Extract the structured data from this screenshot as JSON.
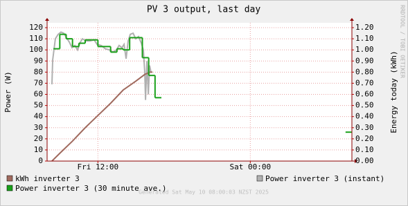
{
  "chart_data": {
    "type": "line",
    "title": "PV 3 output, last day",
    "ylabel": "Power (W)",
    "y2label": "Energy today (kWh)",
    "side_text": "RRDTOOL / TOBI OETIKER",
    "footer": "Generated Sat May 10 08:00:03 NZST 2025",
    "xlim": [
      8,
      32
    ],
    "xticks": [
      {
        "value": 12,
        "label": "Fri 12:00"
      },
      {
        "value": 24,
        "label": "Sat 00:00"
      }
    ],
    "ylim": [
      0,
      120
    ],
    "yticks": [
      0,
      10,
      20,
      30,
      40,
      50,
      60,
      70,
      80,
      90,
      100,
      110,
      120
    ],
    "y2lim": [
      0,
      1.2
    ],
    "y2ticks": [
      {
        "value": 0,
        "label": "0.00"
      },
      {
        "value": 0.1,
        "label": "0.10"
      },
      {
        "value": 0.2,
        "label": "0.20"
      },
      {
        "value": 0.3,
        "label": "0.30"
      },
      {
        "value": 0.4,
        "label": "0.40"
      },
      {
        "value": 0.5,
        "label": "0.50"
      },
      {
        "value": 0.6,
        "label": "0.60"
      },
      {
        "value": 0.7,
        "label": "0.70"
      },
      {
        "value": 0.8,
        "label": "0.80"
      },
      {
        "value": 0.9,
        "label": "0.90"
      },
      {
        "value": 1.0,
        "label": "1.00"
      },
      {
        "value": 1.1,
        "label": "1.10"
      },
      {
        "value": 1.2,
        "label": "1.20"
      }
    ],
    "grid": true,
    "series": [
      {
        "name": "kWh inverter 3",
        "color": "#a06a5e",
        "axis": "y2",
        "x": [
          8.38,
          9,
          10,
          11,
          12,
          13,
          14,
          15,
          15.7,
          16.1,
          16.3
        ],
        "values": [
          0,
          0.07,
          0.18,
          0.3,
          0.41,
          0.52,
          0.64,
          0.72,
          0.78,
          0.8,
          0.8
        ]
      },
      {
        "name": "Power inverter 3 (instant)",
        "color": "#b0b0b0",
        "x": [
          8.38,
          8.44,
          8.65,
          8.87,
          9.09,
          9.31,
          9.47,
          9.75,
          9.96,
          10.18,
          10.4,
          10.62,
          10.78,
          11.06,
          11.38,
          11.71,
          11.93,
          12.26,
          12.58,
          12.91,
          13.18,
          13.46,
          13.67,
          13.89,
          14.06,
          14.22,
          14.38,
          14.55,
          14.77,
          14.98,
          15.2,
          15.42,
          15.58,
          15.69,
          15.75,
          15.86,
          15.97,
          16.07,
          16.18
        ],
        "values": [
          69,
          91,
          110,
          114,
          116,
          115,
          112,
          107,
          102,
          104,
          100,
          107,
          110,
          108,
          108,
          109,
          105,
          104,
          101,
          100,
          98,
          100,
          104,
          102,
          105,
          92,
          108,
          114,
          115,
          110,
          112,
          106,
          100,
          80,
          55,
          90,
          60,
          86,
          80
        ]
      },
      {
        "name": "Power inverter 3 (30 minute ave.)",
        "color": "#1aa01a",
        "drawstyle": "steps-post",
        "x": [
          8.5,
          9,
          9.5,
          10,
          10.5,
          11,
          11.5,
          12,
          12.5,
          13,
          13.5,
          14,
          14.5,
          15,
          15.5,
          16,
          16.5,
          17,
          31.5
        ],
        "values": [
          101,
          114,
          110,
          103,
          106,
          109,
          109,
          103,
          103,
          98,
          101,
          100,
          111,
          111,
          93,
          77,
          57,
          null,
          26
        ]
      }
    ]
  }
}
